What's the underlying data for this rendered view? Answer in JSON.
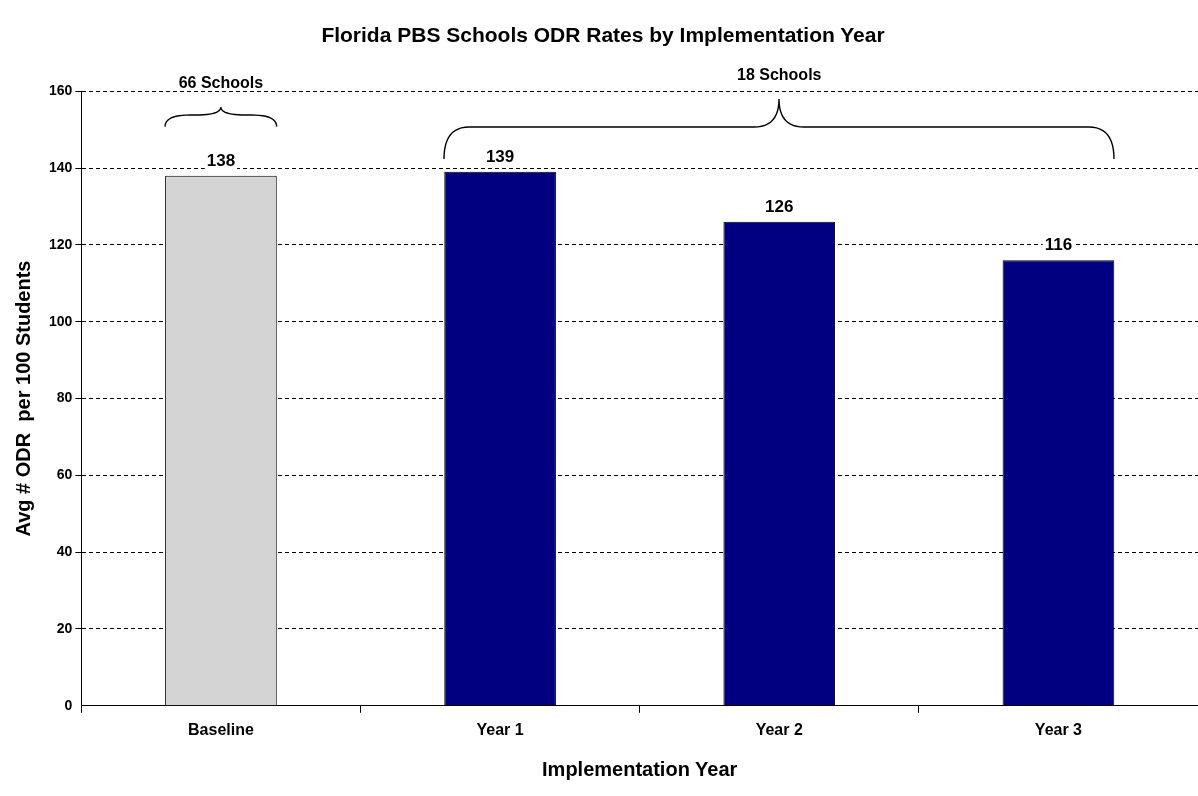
{
  "chart_data": {
    "type": "bar",
    "title": "Florida PBS Schools ODR Rates by Implementation Year",
    "xlabel": "Implementation Year",
    "ylabel": "Avg # ODR  per 100 Students",
    "categories": [
      "Baseline",
      "Year 1",
      "Year 2",
      "Year 3"
    ],
    "values": [
      138,
      139,
      126,
      116
    ],
    "colors": [
      "#d4d4d4",
      "#000080",
      "#000080",
      "#000080"
    ],
    "ylim": [
      0,
      160
    ],
    "yticks": [
      0,
      20,
      40,
      60,
      80,
      100,
      120,
      140,
      160
    ],
    "grid": "y",
    "data_labels": true,
    "annotations": [
      "66  Schools",
      "18  Schools"
    ]
  }
}
